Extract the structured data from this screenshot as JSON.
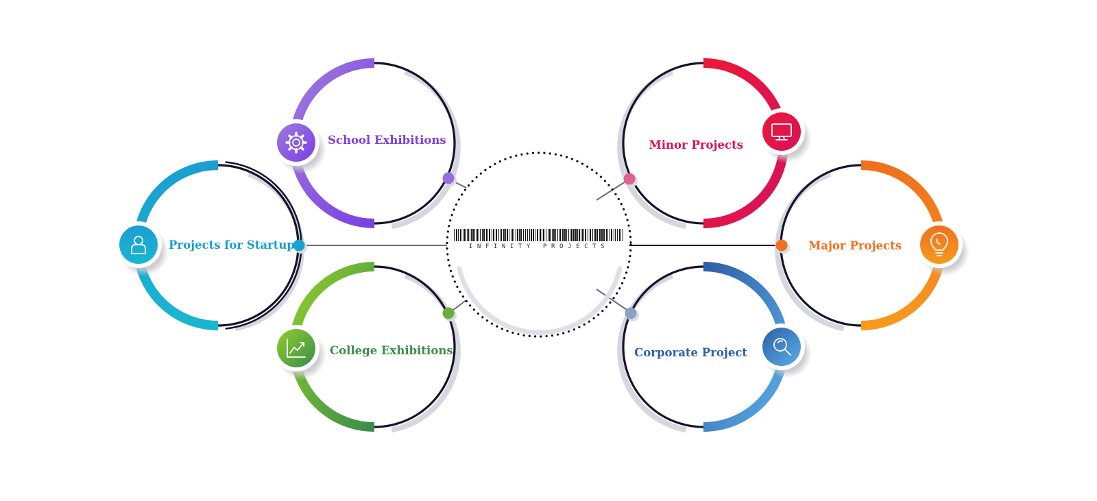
{
  "center": {
    "title": "INFINITY PROJECTS"
  },
  "nodes": [
    {
      "key": "school",
      "label": "School Exhibitions",
      "icon": "gear-icon",
      "color": "#7b3fe4",
      "color2": "#9b7bdc"
    },
    {
      "key": "startups",
      "label": "Projects for Startups",
      "icon": "person-icon",
      "color": "#1a9fd0",
      "color2": "#19b6d1"
    },
    {
      "key": "college",
      "label": "College Exhibitions",
      "icon": "chart-icon",
      "color": "#3b8c4a",
      "color2": "#8fce2c"
    },
    {
      "key": "minor",
      "label": "Minor Projects",
      "icon": "monitor-icon",
      "color": "#d6125a",
      "color2": "#ec1838"
    },
    {
      "key": "major",
      "label": "Major Projects",
      "icon": "lightbulb-icon",
      "color": "#f0701e",
      "color2": "#f79a1e"
    },
    {
      "key": "corporate",
      "label": "Corporate Project",
      "icon": "magnifier-icon",
      "color": "#2e5fa8",
      "color2": "#5aaee6"
    }
  ]
}
